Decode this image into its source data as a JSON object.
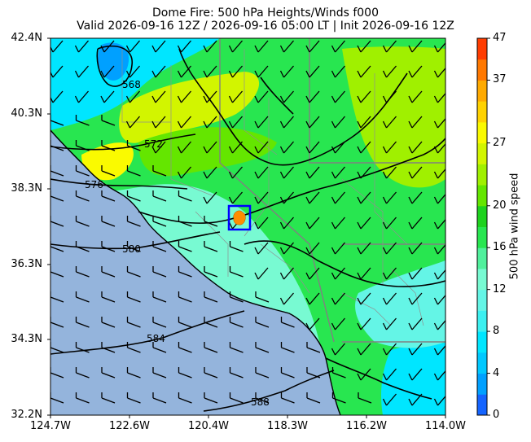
{
  "title_line1": "Dome Fire: 500 hPa Heights/Winds f000",
  "title_line2": "Valid 2026-09-16 12Z / 2026-09-16 05:00 LT | Init 2026-09-16 12Z",
  "lat_ticks": [
    "42.4N",
    "40.3N",
    "38.3N",
    "36.3N",
    "34.3N",
    "32.2N"
  ],
  "lon_ticks": [
    "124.7W",
    "122.6W",
    "120.4W",
    "118.3W",
    "116.2W",
    "114.0W"
  ],
  "colorbar": {
    "label": "500 hPa wind speed",
    "ticks": [
      "0",
      "4",
      "8",
      "12",
      "16",
      "20",
      "27",
      "37",
      "47"
    ],
    "levels": [
      0,
      2,
      4,
      6,
      8,
      10,
      12,
      14,
      16,
      18,
      20,
      22,
      24,
      27,
      30,
      33,
      37,
      42,
      47
    ],
    "colors": [
      "#1464ff",
      "#00a0ff",
      "#00c8ff",
      "#00e6ff",
      "#3cf0f0",
      "#64f5e6",
      "#78fad2",
      "#50f09c",
      "#28e650",
      "#1ed21e",
      "#64e600",
      "#a0f000",
      "#d2f500",
      "#fafa00",
      "#ffd200",
      "#ffaa00",
      "#ff7800",
      "#ff3c00"
    ]
  },
  "contour_labels": [
    "572",
    "576",
    "580",
    "584",
    "588",
    "568"
  ],
  "fire_marker": {
    "name": "Dome Fire",
    "box_color": "#0000ff",
    "fire_color": "#ff8c00"
  },
  "colors": {
    "ocean": "#94b4dc",
    "coast": "#000000",
    "borders": "#808080",
    "contours": "#000000"
  }
}
